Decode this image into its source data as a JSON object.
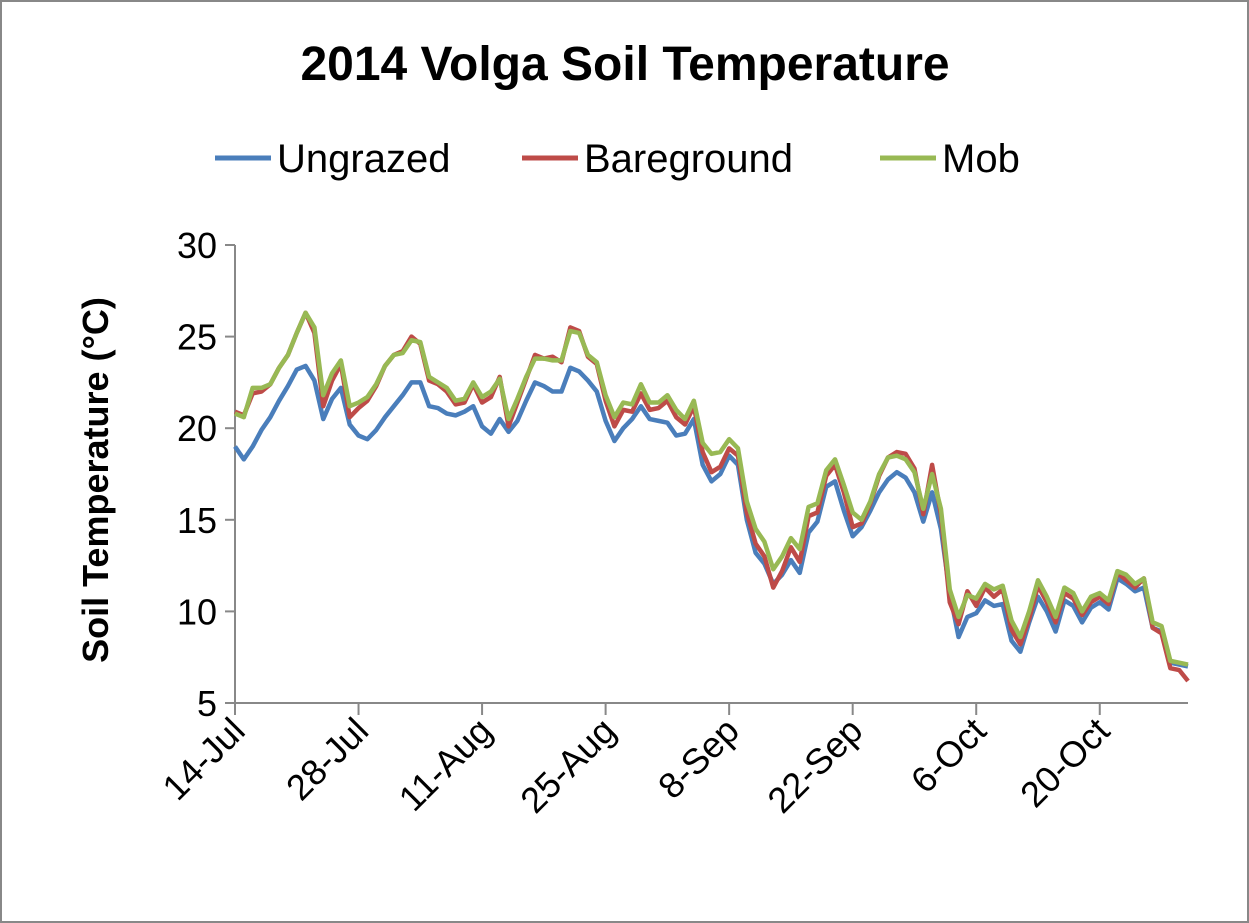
{
  "chart_data": {
    "type": "line",
    "title": "2014 Volga Soil Temperature",
    "y_label": "Soil Temperature (°C)",
    "categories": [
      "14-Jul",
      null,
      null,
      null,
      null,
      null,
      null,
      null,
      null,
      null,
      null,
      null,
      null,
      null,
      "28-Jul",
      null,
      null,
      null,
      null,
      null,
      null,
      null,
      null,
      null,
      null,
      null,
      null,
      null,
      "11-Aug",
      null,
      null,
      null,
      null,
      null,
      null,
      null,
      null,
      null,
      null,
      null,
      null,
      null,
      "25-Aug",
      null,
      null,
      null,
      null,
      null,
      null,
      null,
      null,
      null,
      null,
      null,
      null,
      null,
      "8-Sep",
      null,
      null,
      null,
      null,
      null,
      null,
      null,
      null,
      null,
      null,
      null,
      null,
      null,
      "22-Sep",
      null,
      null,
      null,
      null,
      null,
      null,
      null,
      null,
      null,
      null,
      null,
      null,
      null,
      "6-Oct",
      null,
      null,
      null,
      null,
      null,
      null,
      null,
      null,
      null,
      null,
      null,
      null,
      null,
      "20-Oct",
      null,
      null,
      null,
      null,
      null,
      null,
      null,
      null,
      null,
      null
    ],
    "series": [
      {
        "name": "Ungrazed",
        "color": "#4a7ebb",
        "values": [
          19.0,
          18.3,
          19.0,
          19.9,
          20.6,
          21.5,
          22.3,
          23.2,
          23.4,
          22.6,
          20.5,
          21.6,
          22.2,
          20.2,
          19.6,
          19.4,
          19.9,
          20.6,
          21.2,
          21.8,
          22.5,
          22.5,
          21.2,
          21.1,
          20.8,
          20.7,
          20.9,
          21.2,
          20.1,
          19.7,
          20.5,
          19.8,
          20.4,
          21.5,
          22.5,
          22.3,
          22.0,
          22.0,
          23.3,
          23.1,
          22.6,
          22.0,
          20.4,
          19.3,
          20.0,
          20.5,
          21.2,
          20.5,
          20.4,
          20.3,
          19.6,
          19.7,
          20.5,
          18.0,
          17.1,
          17.5,
          18.5,
          18.0,
          15.0,
          13.2,
          12.6,
          11.5,
          12.0,
          12.8,
          12.1,
          14.3,
          14.9,
          16.8,
          17.1,
          15.5,
          14.1,
          14.6,
          15.5,
          16.5,
          17.2,
          17.6,
          17.3,
          16.5,
          14.9,
          16.5,
          14.5,
          11.0,
          8.6,
          9.7,
          9.9,
          10.6,
          10.3,
          10.4,
          8.4,
          7.8,
          9.4,
          10.8,
          10.0,
          8.9,
          10.6,
          10.3,
          9.4,
          10.2,
          10.5,
          10.1,
          11.8,
          11.5,
          11.1,
          11.3,
          9.1,
          8.9,
          7.2,
          7.1,
          7.0
        ]
      },
      {
        "name": "Bareground",
        "color": "#be4b48",
        "values": [
          20.9,
          20.7,
          21.9,
          22.0,
          22.4,
          23.3,
          24.0,
          25.2,
          26.3,
          25.2,
          21.2,
          22.6,
          23.5,
          20.6,
          21.1,
          21.5,
          22.3,
          23.4,
          24.0,
          24.2,
          25.0,
          24.6,
          22.6,
          22.4,
          22.0,
          21.3,
          21.4,
          22.4,
          21.4,
          21.7,
          22.8,
          20.1,
          21.4,
          22.7,
          24.0,
          23.8,
          23.9,
          23.6,
          25.5,
          25.3,
          23.9,
          23.5,
          21.5,
          20.1,
          21.0,
          20.9,
          21.9,
          21.0,
          21.1,
          21.5,
          20.6,
          20.2,
          21.2,
          18.7,
          17.6,
          17.9,
          18.9,
          18.5,
          15.4,
          13.7,
          13.0,
          11.3,
          12.2,
          13.5,
          12.7,
          15.2,
          15.4,
          17.4,
          18.0,
          16.5,
          14.6,
          14.8,
          15.9,
          17.4,
          18.4,
          18.7,
          18.6,
          17.8,
          15.3,
          18.0,
          15.3,
          10.5,
          9.3,
          11.1,
          10.3,
          11.3,
          10.8,
          11.2,
          9.0,
          8.2,
          9.6,
          11.4,
          10.5,
          9.4,
          11.0,
          10.7,
          9.8,
          10.5,
          10.8,
          10.4,
          12.1,
          11.7,
          11.3,
          11.8,
          9.1,
          8.8,
          6.9,
          6.8,
          6.2
        ]
      },
      {
        "name": "Mob",
        "color": "#98b954",
        "values": [
          20.8,
          20.6,
          22.2,
          22.2,
          22.4,
          23.3,
          24.0,
          25.2,
          26.3,
          25.5,
          21.8,
          23.0,
          23.7,
          21.2,
          21.4,
          21.7,
          22.4,
          23.4,
          24.0,
          24.1,
          24.8,
          24.7,
          22.8,
          22.5,
          22.2,
          21.5,
          21.6,
          22.5,
          21.7,
          22.0,
          22.7,
          20.5,
          21.6,
          22.8,
          23.8,
          23.8,
          23.7,
          23.7,
          25.3,
          25.2,
          24.0,
          23.6,
          21.8,
          20.6,
          21.4,
          21.3,
          22.4,
          21.4,
          21.4,
          21.8,
          21.0,
          20.5,
          21.5,
          19.2,
          18.6,
          18.7,
          19.4,
          18.9,
          16.0,
          14.5,
          13.8,
          12.3,
          13.0,
          14.0,
          13.4,
          15.7,
          15.9,
          17.7,
          18.3,
          16.9,
          15.4,
          15.0,
          16.0,
          17.5,
          18.4,
          18.5,
          18.3,
          17.6,
          15.6,
          17.5,
          15.6,
          11.2,
          9.7,
          10.9,
          10.7,
          11.5,
          11.2,
          11.4,
          9.5,
          8.6,
          10.0,
          11.7,
          10.8,
          9.7,
          11.3,
          11.0,
          10.0,
          10.8,
          11.0,
          10.6,
          12.2,
          12.0,
          11.5,
          11.8,
          9.4,
          9.2,
          7.3,
          7.2,
          7.1
        ]
      }
    ],
    "ylim": [
      5,
      30
    ],
    "yticks": [
      5,
      10,
      15,
      20,
      25,
      30
    ],
    "legend": "top",
    "grid": false
  }
}
